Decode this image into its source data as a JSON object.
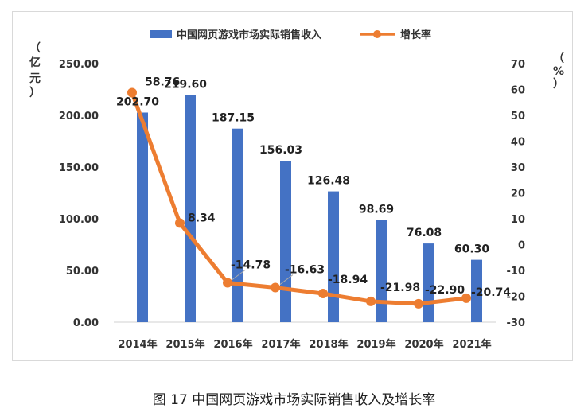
{
  "chart_data": {
    "type": "bar+line",
    "title": "",
    "categories": [
      "2014年",
      "2015年",
      "2016年",
      "2017年",
      "2018年",
      "2019年",
      "2020年",
      "2021年"
    ],
    "series": [
      {
        "name": "中国网页游戏市场实际销售收入",
        "type": "bar",
        "axis": "left",
        "values": [
          202.7,
          219.6,
          187.15,
          156.03,
          126.48,
          98.69,
          76.08,
          60.3
        ],
        "labels": [
          "202.70",
          "219.60",
          "187.15",
          "156.03",
          "126.48",
          "98.69",
          "76.08",
          "60.30"
        ],
        "color": "#4472c4"
      },
      {
        "name": "增长率",
        "type": "line",
        "axis": "right",
        "values": [
          58.76,
          8.34,
          -14.78,
          -16.63,
          -18.94,
          -21.98,
          -22.9,
          -20.74
        ],
        "labels": [
          "58.76",
          "8.34",
          "-14.78",
          "-16.63",
          "-18.94",
          "-21.98",
          "-22.90",
          "-20.74"
        ],
        "color": "#ed7d31"
      }
    ],
    "y_left": {
      "label_chars": [
        "（",
        "亿",
        "元",
        "）"
      ],
      "lim": [
        0,
        250
      ],
      "ticks": [
        "0.00",
        "50.00",
        "100.00",
        "150.00",
        "200.00",
        "250.00"
      ]
    },
    "y_right": {
      "label_chars": [
        "（",
        "%",
        "）"
      ],
      "lim": [
        -30,
        70
      ],
      "ticks": [
        "-30",
        "-20",
        "-10",
        "0",
        "10",
        "20",
        "30",
        "40",
        "50",
        "60",
        "70"
      ]
    },
    "legend_position": "top",
    "grid": false
  },
  "caption": "图 17 中国网页游戏市场实际销售收入及增长率"
}
